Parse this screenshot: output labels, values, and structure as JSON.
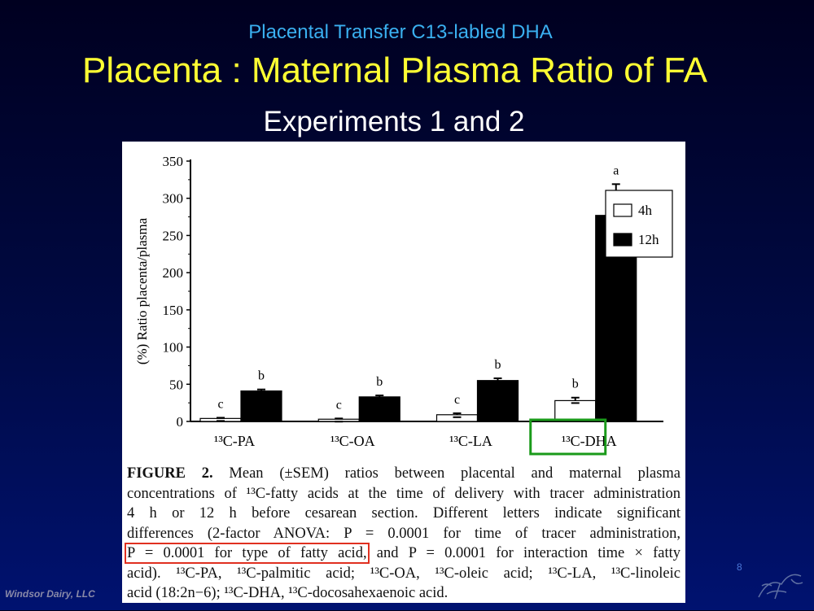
{
  "slide": {
    "subtitle_top": "Placental Transfer C13-labled DHA",
    "title": "Placenta : Maternal Plasma Ratio of FA",
    "experiments": "Experiments 1 and 2",
    "slide_number": "8",
    "footer": "Windsor Dairy, LLC"
  },
  "caption": {
    "fig_label": "FIGURE 2.",
    "lines": [
      " Mean (±SEM) ratios between placental and maternal plasma",
      "concentrations of ¹³C-fatty acids at the time of delivery with tracer administration",
      "4 h or 12 h before cesarean section. Different letters indicate significant",
      "differences (2-factor ANOVA: P = 0.0001 for time of tracer administration,",
      "P = 0.0001 for type of fatty acid,",
      " and P = 0.0001 for interaction time × fatty",
      "acid). ¹³C-PA, ¹³C-palmitic acid; ¹³C-OA, ¹³C-oleic acid; ¹³C-LA, ¹³C-linoleic",
      "acid (18:2n−6); ¹³C-DHA, ¹³C-docosahexaenoic acid."
    ]
  },
  "colors": {
    "title": "#ffff33",
    "subtitle": "#3ab0f0",
    "highlight_green": "#1a9a1a",
    "highlight_red": "#e03020"
  },
  "chart_data": {
    "type": "bar",
    "categories": [
      "¹³C-PA",
      "¹³C-OA",
      "¹³C-LA",
      "¹³C-DHA"
    ],
    "series": [
      {
        "name": "4h",
        "values": [
          4,
          3,
          9,
          28
        ],
        "errors": [
          1,
          1,
          2,
          4
        ],
        "color": "#ffffff"
      },
      {
        "name": "12h",
        "values": [
          41,
          33,
          55,
          277
        ],
        "errors": [
          2,
          2,
          3,
          42
        ],
        "color": "#000000"
      }
    ],
    "significance_letters": {
      "4h": [
        "c",
        "c",
        "c",
        "b"
      ],
      "12h": [
        "b",
        "b",
        "b",
        "a"
      ]
    },
    "ylabel": "(%) Ratio placenta/plasma",
    "ylim": [
      0,
      350
    ],
    "yticks": [
      0,
      50,
      100,
      150,
      200,
      250,
      300,
      350
    ],
    "legend": "top-right",
    "highlighted_category": "¹³C-DHA"
  }
}
